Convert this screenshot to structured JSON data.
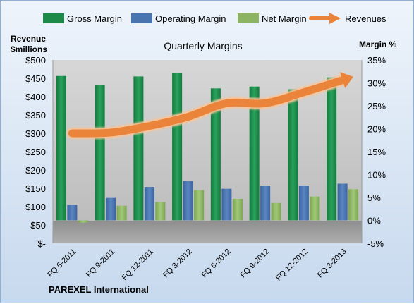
{
  "chart_data": {
    "type": "bar",
    "title": "Quarterly Margins",
    "left_axis_title_lines": [
      "Revenue",
      "$millions"
    ],
    "right_axis_title": "Margin %",
    "footer": "PAREXEL International",
    "categories": [
      "FQ 6-2011",
      "FQ 9-2011",
      "FQ 12-2011",
      "FQ 3-2012",
      "FQ 6-2012",
      "FQ 9-2012",
      "FQ 12-2012",
      "FQ 3-2013"
    ],
    "left_axis": {
      "min": 0,
      "max": 500,
      "step": 50,
      "tick_labels": [
        "$-",
        "$50",
        "$100",
        "$150",
        "$200",
        "$250",
        "$300",
        "$350",
        "$400",
        "$450",
        "$500"
      ]
    },
    "right_axis": {
      "min": -5,
      "max": 35,
      "step": 5,
      "tick_labels": [
        "-5%",
        "0%",
        "5%",
        "10%",
        "15%",
        "20%",
        "25%",
        "30%",
        "35%"
      ]
    },
    "series": [
      {
        "name": "Gross Margin",
        "axis": "right",
        "color": "#1e8a4a",
        "values": [
          31.5,
          29.6,
          31.4,
          32.1,
          28.8,
          29.2,
          28.6,
          31.2
        ]
      },
      {
        "name": "Operating Margin",
        "axis": "right",
        "color": "#4a74ae",
        "values": [
          3.4,
          4.9,
          7.3,
          8.6,
          6.9,
          7.6,
          7.6,
          8.0
        ]
      },
      {
        "name": "Net Margin",
        "axis": "right",
        "color": "#8cb462",
        "values": [
          -0.5,
          3.2,
          4.0,
          6.6,
          4.7,
          3.8,
          5.2,
          6.8
        ]
      },
      {
        "name": "Revenues",
        "axis": "left",
        "type": "line",
        "color": "#e9843a",
        "values": [
          300,
          302,
          320,
          345,
          382,
          382,
          412,
          445
        ]
      }
    ],
    "legend_position": "top",
    "grid": false
  }
}
